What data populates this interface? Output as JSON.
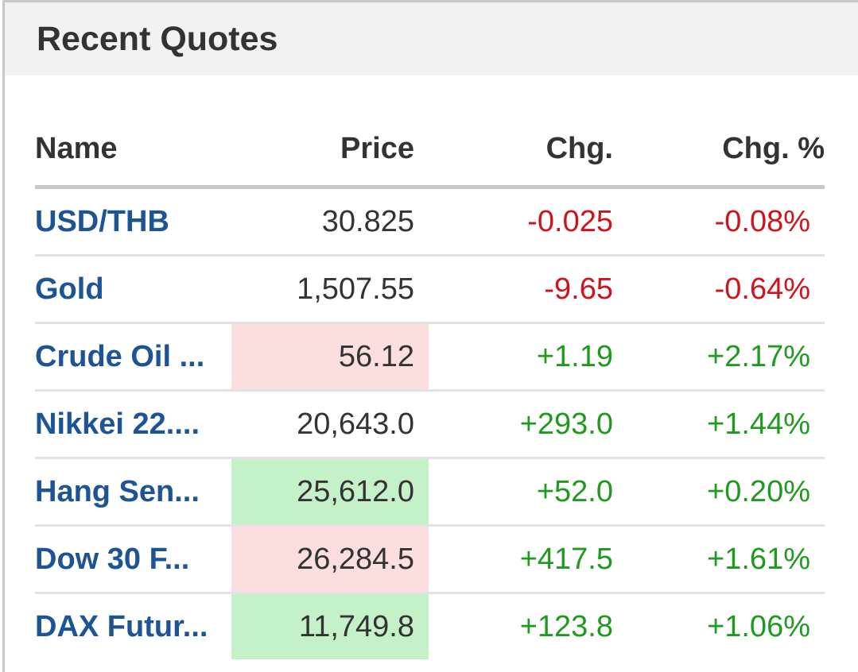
{
  "title": "Recent Quotes",
  "columns": [
    "Name",
    "Price",
    "Chg.",
    "Chg. %"
  ],
  "colors": {
    "link": "#1c5495",
    "negative": "#d0131a",
    "positive": "#1f9a1f",
    "flash_down": "#fbdfdf",
    "flash_up": "#c5f1c8"
  },
  "rows": [
    {
      "name": "USD/THB",
      "price": "30.825",
      "chg": "-0.025",
      "chg_pct": "-0.08%",
      "dir": "neg",
      "flash": ""
    },
    {
      "name": "Gold",
      "price": "1,507.55",
      "chg": "-9.65",
      "chg_pct": "-0.64%",
      "dir": "neg",
      "flash": ""
    },
    {
      "name": "Crude Oil ...",
      "price": "56.12",
      "chg": "+1.19",
      "chg_pct": "+2.17%",
      "dir": "pos",
      "flash": "red"
    },
    {
      "name": "Nikkei 22....",
      "price": "20,643.0",
      "chg": "+293.0",
      "chg_pct": "+1.44%",
      "dir": "pos",
      "flash": ""
    },
    {
      "name": "Hang Sen...",
      "price": "25,612.0",
      "chg": "+52.0",
      "chg_pct": "+0.20%",
      "dir": "pos",
      "flash": "green"
    },
    {
      "name": "Dow 30 F...",
      "price": "26,284.5",
      "chg": "+417.5",
      "chg_pct": "+1.61%",
      "dir": "pos",
      "flash": "red"
    },
    {
      "name": "DAX Futur...",
      "price": "11,749.8",
      "chg": "+123.8",
      "chg_pct": "+1.06%",
      "dir": "pos",
      "flash": "green"
    }
  ]
}
